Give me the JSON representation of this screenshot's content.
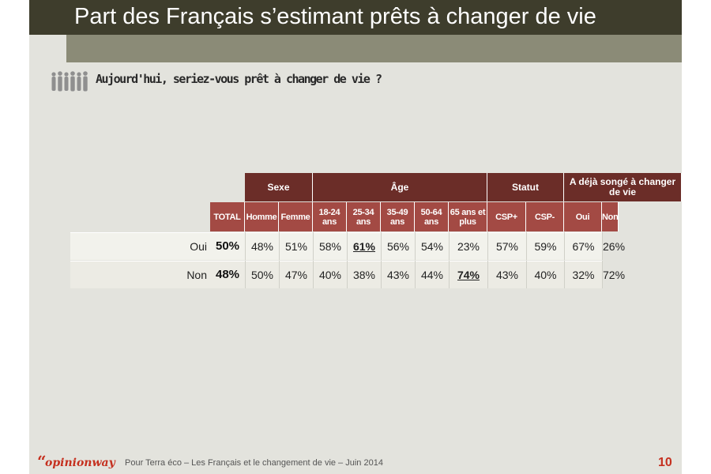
{
  "header": {
    "title": "Part des Français s’estimant prêts à changer de vie"
  },
  "question": "Aujourd'hui, seriez-vous prêt à changer de vie ?",
  "icons": {
    "people": "people-group-icon"
  },
  "colors": {
    "group_header": "#6b2d28",
    "sub_header": "#a34a44",
    "accent": "#c5301f",
    "title_bar": "#3e3d2c"
  },
  "chart_data": {
    "type": "table",
    "groups": [
      {
        "label": "Sexe",
        "span": 2
      },
      {
        "label": "Âge",
        "span": 5
      },
      {
        "label": "Statut",
        "span": 2
      },
      {
        "label": "A déjà songé à changer de vie",
        "span": 2
      }
    ],
    "total_label": "TOTAL",
    "columns": [
      "Homme",
      "Femme",
      "18-24 ans",
      "25-34 ans",
      "35-49 ans",
      "50-64 ans",
      "65 ans et plus",
      "CSP+",
      "CSP-",
      "Oui",
      "Non"
    ],
    "rows": [
      {
        "label": "Oui",
        "total": "50%",
        "values": [
          "48%",
          "51%",
          "58%",
          "61%",
          "56%",
          "54%",
          "23%",
          "57%",
          "59%",
          "67%",
          "26%"
        ],
        "highlight": [
          3
        ]
      },
      {
        "label": "Non",
        "total": "48%",
        "values": [
          "50%",
          "47%",
          "40%",
          "38%",
          "43%",
          "44%",
          "74%",
          "43%",
          "40%",
          "32%",
          "72%"
        ],
        "highlight": [
          6
        ]
      }
    ]
  },
  "footer": {
    "quote_mark": "“",
    "logo": "opinionway",
    "text": "Pour Terra éco – Les Français et le changement de vie – Juin 2014",
    "page": "10"
  }
}
